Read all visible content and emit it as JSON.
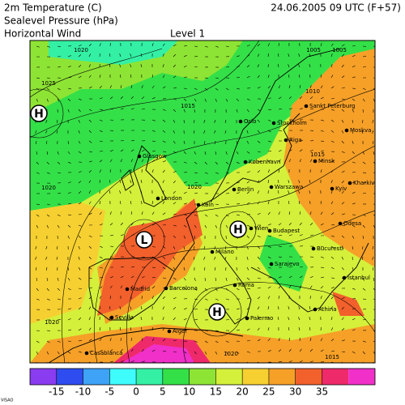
{
  "header": {
    "variables": [
      "2m Temperature (C)",
      "Sealevel Pressure (hPa)",
      "Horizontal Wind"
    ],
    "level": "Level  1",
    "valid_time": "24.06.2005 09 UTC (F+57)"
  },
  "map": {
    "pressure_centers": [
      "H",
      "H",
      "H",
      "L"
    ],
    "isobar_labels": [
      1020,
      1025,
      1015,
      1010,
      1005,
      1005,
      1015,
      1020,
      1020,
      1020,
      1020,
      1015
    ],
    "cities": [
      "Glasgow",
      "London",
      "Köln",
      "Berlin",
      "København",
      "Oslo",
      "Stockholm",
      "Riga",
      "Sankt Peterburg",
      "Moskva",
      "Minsk",
      "Warszawa",
      "Kharkiv",
      "Kyiv",
      "Odesa",
      "Bucuresti",
      "Budapest",
      "Wien",
      "Milano",
      "Sarajevo",
      "Roma",
      "Istanbul",
      "Madrid",
      "Barcelona",
      "Sevilla",
      "Palermo",
      "Athina",
      "Alger",
      "Casablanca"
    ]
  },
  "colorbar": {
    "colors": [
      "#8a3cf0",
      "#2e4cf0",
      "#3ea2f6",
      "#3ffcfc",
      "#34f0a4",
      "#34e048",
      "#8ee434",
      "#d4f03a",
      "#f6d030",
      "#f6a028",
      "#f2602c",
      "#ef2a6a",
      "#f030c8"
    ],
    "ticks": [
      -15,
      -10,
      -5,
      0,
      5,
      10,
      15,
      20,
      25,
      30,
      35
    ]
  },
  "footer": "VISAO"
}
